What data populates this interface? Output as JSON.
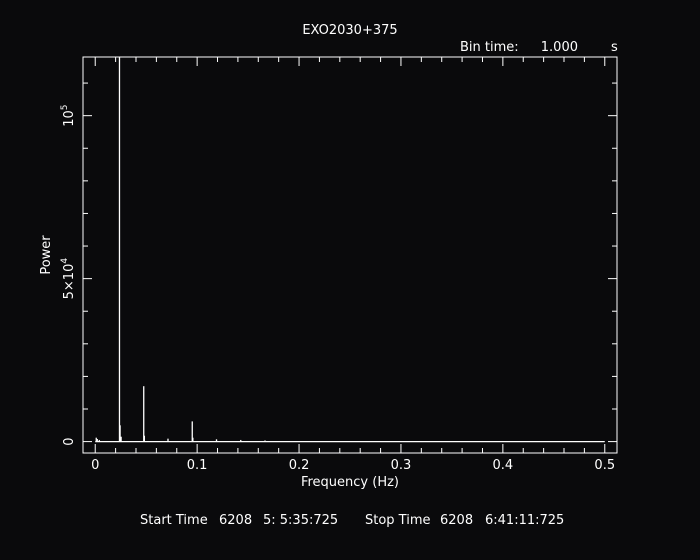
{
  "chart_data": {
    "type": "line",
    "title": "EXO2030+375",
    "bin_time_label": "Bin time:",
    "bin_time_value": "1.000",
    "bin_time_unit": "s",
    "xlabel": "Frequency (Hz)",
    "ylabel": "Power",
    "xlim": [
      -0.012,
      0.512
    ],
    "ylim": [
      -3500,
      118000
    ],
    "x_ticks": [
      {
        "value": 0,
        "label": "0"
      },
      {
        "value": 0.1,
        "label": "0.1"
      },
      {
        "value": 0.2,
        "label": "0.2"
      },
      {
        "value": 0.3,
        "label": "0.3"
      },
      {
        "value": 0.4,
        "label": "0.4"
      },
      {
        "value": 0.5,
        "label": "0.5"
      }
    ],
    "x_minor_step": 0.02,
    "y_ticks": [
      {
        "value": 0,
        "label": "0",
        "exp": ""
      },
      {
        "value": 50000,
        "label": "5×10",
        "exp": "4"
      },
      {
        "value": 100000,
        "label": "10",
        "exp": "5"
      }
    ],
    "y_minor_step": 10000,
    "grid": false,
    "series": [
      {
        "color": "#ffffff",
        "spikes": [
          {
            "x": 0.001,
            "y": 1200
          },
          {
            "x": 0.002,
            "y": 800
          },
          {
            "x": 0.004,
            "y": 500
          },
          {
            "x": 0.0238,
            "y": 118000
          },
          {
            "x": 0.0244,
            "y": 5000
          },
          {
            "x": 0.0254,
            "y": 1500
          },
          {
            "x": 0.0476,
            "y": 17000
          },
          {
            "x": 0.0482,
            "y": 1800
          },
          {
            "x": 0.0714,
            "y": 900
          },
          {
            "x": 0.0952,
            "y": 6200
          },
          {
            "x": 0.0958,
            "y": 1200
          },
          {
            "x": 0.119,
            "y": 700
          },
          {
            "x": 0.1428,
            "y": 500
          },
          {
            "x": 0.1666,
            "y": 350
          }
        ]
      }
    ]
  },
  "footer": {
    "start_label": "Start Time",
    "start_day": "6208",
    "start_time": "5: 5:35:725",
    "stop_label": "Stop Time",
    "stop_day": "6208",
    "stop_time": "6:41:11:725"
  }
}
